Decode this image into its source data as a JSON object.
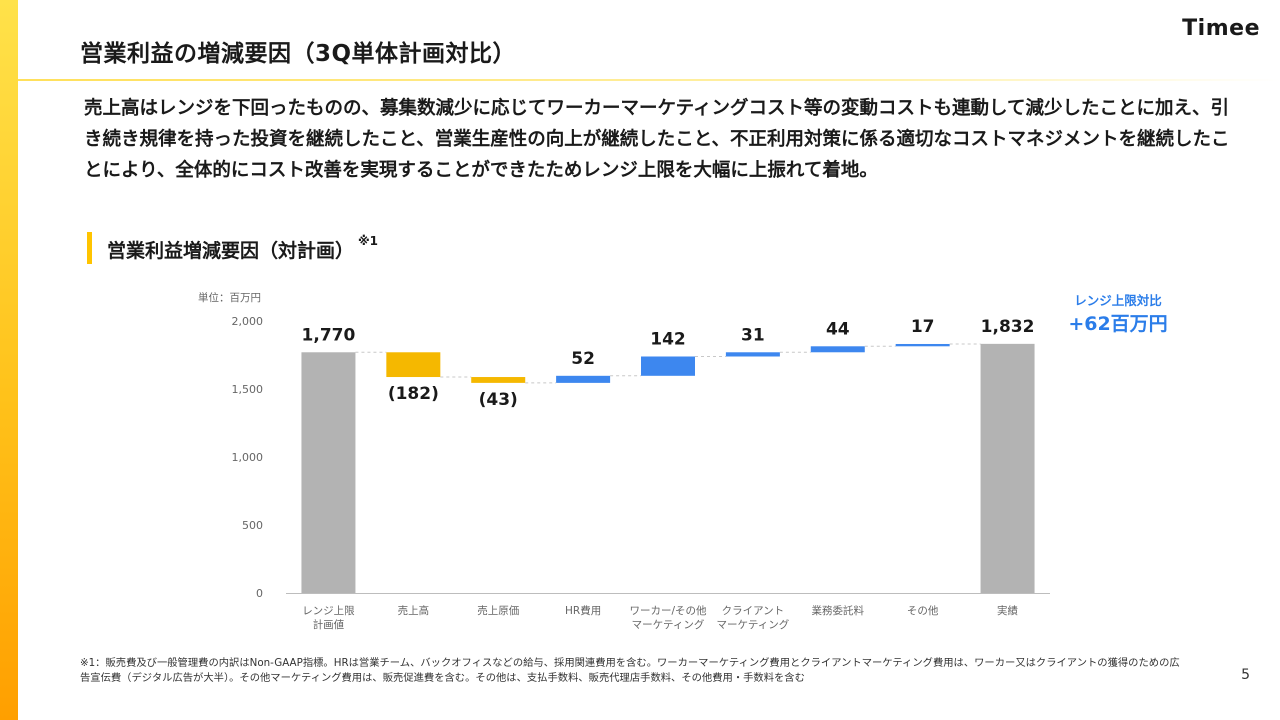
{
  "header": {
    "title": "営業利益の増減要因（3Q単体計画対比）",
    "logo": "Timee"
  },
  "body_text": "売上高はレンジを下回ったものの、募集数減少に応じてワーカーマーケティングコスト等の変動コストも連動して減少したことに加え、引き続き規律を持った投資を継続したこと、営業生産性の向上が継続したこと、不正利用対策に係る適切なコストマネジメントを継続したことにより、全体的にコスト改善を実現することができたためレンジ上限を大幅に上振れて着地。",
  "section": {
    "title": "営業利益増減要因（対計画）",
    "note_mark": "※1"
  },
  "unit_label": "単位：百万円",
  "range_callout": {
    "label": "レンジ上限対比",
    "value": "+62百万円"
  },
  "chart_data": {
    "type": "bar",
    "subtype": "waterfall",
    "categories": [
      [
        "レンジ上限",
        "計画値"
      ],
      [
        "売上高"
      ],
      [
        "売上原価"
      ],
      [
        "HR費用"
      ],
      [
        "ワーカー/その他",
        "マーケティング"
      ],
      [
        "クライアント",
        "マーケティング"
      ],
      [
        "業務委託料"
      ],
      [
        "その他"
      ],
      [
        "実績"
      ]
    ],
    "values": [
      1770,
      -182,
      -43,
      52,
      142,
      31,
      44,
      17,
      1832
    ],
    "bar_kinds": [
      "total",
      "delta",
      "delta",
      "delta",
      "delta",
      "delta",
      "delta",
      "delta",
      "total"
    ],
    "data_labels": [
      "1,770",
      "(182)",
      "(43)",
      "52",
      "142",
      "31",
      "44",
      "17",
      "1,832"
    ],
    "ylim": [
      0,
      2000
    ],
    "yticks": [
      0,
      500,
      1000,
      1500,
      2000
    ],
    "ytick_labels": [
      "0",
      "500",
      "1,000",
      "1,500",
      "2,000"
    ],
    "colors": {
      "total": "#b3b3b3",
      "decrease": "#f5b800",
      "increase": "#3d87ef",
      "connector": "#c8c8c8",
      "label": "#1a1a1a",
      "axis_text": "#666666"
    }
  },
  "footnote": "※1：販売費及び一般管理費の内訳はNon-GAAP指標。HRは営業チーム、バックオフィスなどの給与、採用関連費用を含む。ワーカーマーケティング費用とクライアントマーケティング費用は、ワーカー又はクライアントの獲得のための広告宣伝費（デジタル広告が大半）。その他マーケティング費用は、販売促進費を含む。その他は、支払手数料、販売代理店手数料、その他費用・手数料を含む",
  "page_number": "5"
}
